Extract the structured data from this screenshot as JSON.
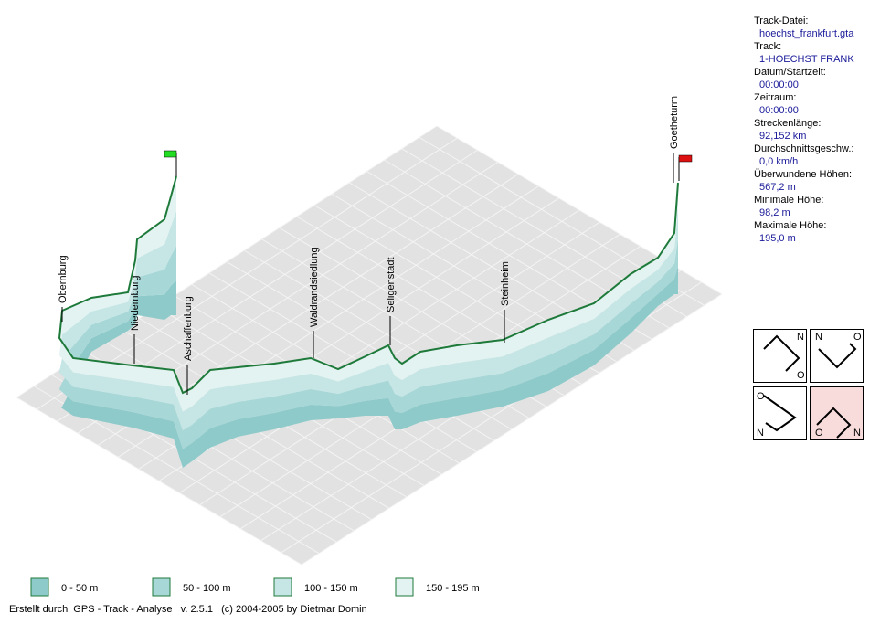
{
  "info": [
    {
      "label": "Track-Datei:",
      "value": "hoechst_frankfurt.gta"
    },
    {
      "label": "Track:",
      "value": "1-HOECHST FRANK"
    },
    {
      "label": "Datum/Startzeit:",
      "value": "00:00:00"
    },
    {
      "label": "Zeitraum:",
      "value": "00:00:00"
    },
    {
      "label": "Streckenlänge:",
      "value": "92,152 km"
    },
    {
      "label": "Durchschnittsgeschw.:",
      "value": "0,0 km/h"
    },
    {
      "label": "Überwundene Höhen:",
      "value": "567,2 m"
    },
    {
      "label": "Minimale Höhe:",
      "value": "98,2 m"
    },
    {
      "label": "Maximale Höhe:",
      "value": "195,0 m"
    }
  ],
  "waypoints": [
    "Obernburg",
    "Niedernburg",
    "Aschaffenburg",
    "Waldrandsiedlung",
    "Seligenstadt",
    "Steinheim",
    "Goetheturm"
  ],
  "legend": [
    {
      "label": "0 - 50 m",
      "color": "#8ecaca"
    },
    {
      "label": "50 - 100 m",
      "color": "#a8d7d7"
    },
    {
      "label": "100 - 150 m",
      "color": "#c6e6e6"
    },
    {
      "label": "150 - 195 m",
      "color": "#e3f3f1"
    }
  ],
  "orientation": [
    [
      "N",
      "O"
    ],
    [
      "N",
      "O"
    ],
    [
      "O",
      "N"
    ],
    [
      "O",
      "N"
    ]
  ],
  "footer": "Erstellt durch  GPS - Track - Analyse   v. 2.5.1   (c) 2004-2005 by Dietmar Domin"
}
